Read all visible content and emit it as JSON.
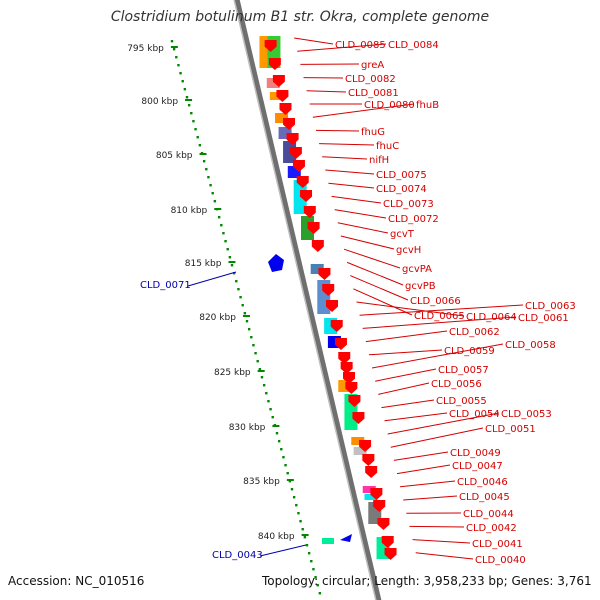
{
  "title": "Clostridium botulinum B1 str. Okra, complete genome",
  "accession": "Accession: NC_010516",
  "topology": "Topology: circular; Length: 3,958,233 bp; Genes: 3,761",
  "colors": {
    "forward_label": "#d40000",
    "reverse_label": "#0000aa",
    "ruler_tick": "#008800",
    "backbone": "#8a8a8a",
    "cds": "#ff0000"
  },
  "ruler": {
    "unit": "kbp",
    "labels": [
      "795 kbp",
      "800 kbp",
      "805 kbp",
      "810 kbp",
      "815 kbp",
      "820 kbp",
      "825 kbp",
      "830 kbp",
      "835 kbp",
      "840 kbp"
    ]
  },
  "forward_genes": [
    "CLD_0085",
    "CLD_0084",
    "greA",
    "CLD_0082",
    "CLD_0081",
    "CLD_0080",
    "fhuB",
    "fhuG",
    "fhuC",
    "nifH",
    "CLD_0075",
    "CLD_0074",
    "CLD_0073",
    "CLD_0072",
    "gcvT",
    "gcvH",
    "gcvPA",
    "gcvPB",
    "CLD_0066",
    "CLD_0065",
    "CLD_0064",
    "CLD_0063",
    "CLD_0061",
    "CLD_0062",
    "CLD_0059",
    "CLD_0058",
    "CLD_0057",
    "CLD_0056",
    "CLD_0055",
    "CLD_0054",
    "CLD_0053",
    "CLD_0051",
    "CLD_0049",
    "CLD_0047",
    "CLD_0046",
    "CLD_0045",
    "CLD_0044",
    "CLD_0042",
    "CLD_0041",
    "CLD_0040"
  ],
  "reverse_genes": [
    "CLD_0071",
    "CLD_0043"
  ]
}
